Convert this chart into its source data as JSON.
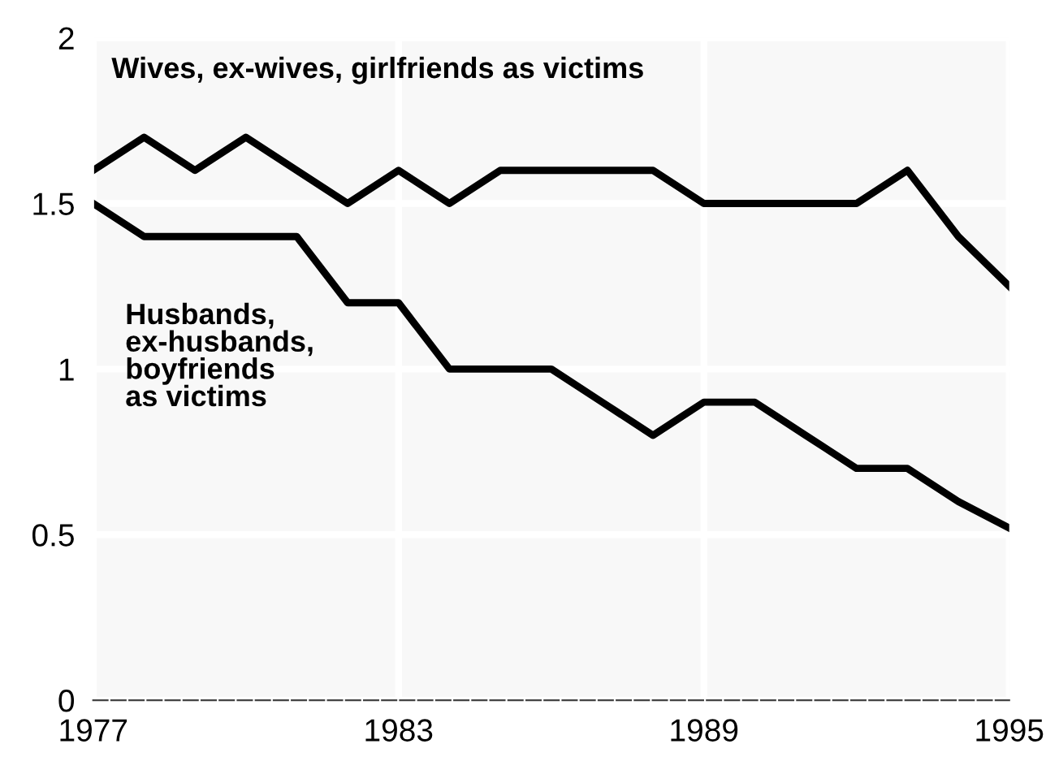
{
  "chart_data": {
    "type": "line",
    "x": [
      1977,
      1978,
      1979,
      1980,
      1981,
      1982,
      1983,
      1984,
      1985,
      1986,
      1987,
      1988,
      1989,
      1990,
      1991,
      1992,
      1993,
      1994,
      1995
    ],
    "series": [
      {
        "name": "Wives, ex-wives, girlfriends as victims",
        "color": "#000000",
        "values": [
          1.6,
          1.7,
          1.6,
          1.7,
          1.6,
          1.5,
          1.6,
          1.5,
          1.6,
          1.6,
          1.6,
          1.6,
          1.5,
          1.5,
          1.5,
          1.5,
          1.6,
          1.4,
          1.25
        ]
      },
      {
        "name": "Husbands,\nex-husbands,\nboyfriends\nas victims",
        "color": "#000000",
        "values": [
          1.5,
          1.4,
          1.4,
          1.4,
          1.4,
          1.2,
          1.2,
          1.0,
          1.0,
          1.0,
          0.9,
          0.8,
          0.9,
          0.9,
          0.8,
          0.7,
          0.7,
          0.6,
          0.52
        ]
      }
    ],
    "xlim": [
      1977,
      1995
    ],
    "xticks": [
      1977,
      1983,
      1989,
      1995
    ],
    "ylim": [
      0,
      2
    ],
    "yticks": [
      0,
      0.5,
      1,
      1.5,
      2
    ],
    "grid": true,
    "marker": "none",
    "line_style": "solid"
  }
}
